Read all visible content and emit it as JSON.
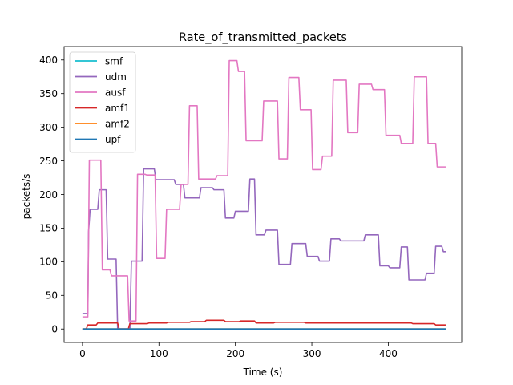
{
  "chart_data": {
    "type": "line",
    "title": "Rate_of_transmitted_packets",
    "xlabel": "Time (s)",
    "ylabel": "packets/s",
    "xlim": [
      -24,
      496
    ],
    "ylim": [
      -20,
      420
    ],
    "xticks": [
      0,
      100,
      200,
      300,
      400
    ],
    "yticks": [
      0,
      50,
      100,
      150,
      200,
      250,
      300,
      350,
      400
    ],
    "grid": false,
    "legend_position": "upper-left",
    "series": [
      {
        "name": "smf",
        "color": "#17becf",
        "x": [
          0,
          475
        ],
        "y": [
          0,
          0
        ]
      },
      {
        "name": "udm",
        "color": "#9467bd",
        "x": [
          0,
          7,
          8,
          10,
          11,
          20,
          22,
          31,
          33,
          44,
          46,
          62,
          64,
          78,
          80,
          94,
          96,
          120,
          122,
          132,
          134,
          153,
          155,
          170,
          172,
          185,
          187,
          198,
          200,
          217,
          219,
          225,
          227,
          238,
          240,
          255,
          257,
          272,
          274,
          292,
          294,
          308,
          310,
          323,
          325,
          336,
          338,
          368,
          370,
          387,
          389,
          400,
          402,
          415,
          417,
          425,
          427,
          448,
          450,
          460,
          462,
          470,
          472,
          475
        ],
        "y": [
          23,
          23,
          145,
          178,
          178,
          178,
          207,
          207,
          104,
          104,
          0,
          0,
          101,
          101,
          238,
          238,
          222,
          222,
          215,
          215,
          195,
          195,
          210,
          210,
          207,
          207,
          165,
          165,
          175,
          175,
          223,
          223,
          140,
          140,
          147,
          147,
          96,
          96,
          127,
          127,
          108,
          108,
          101,
          101,
          134,
          134,
          131,
          131,
          140,
          140,
          94,
          94,
          91,
          91,
          122,
          122,
          73,
          73,
          83,
          83,
          123,
          123,
          115,
          115
        ]
      },
      {
        "name": "ausf",
        "color": "#e377c2",
        "x": [
          0,
          7,
          9,
          24,
          26,
          36,
          38,
          46,
          48,
          59,
          61,
          70,
          72,
          82,
          84,
          95,
          97,
          108,
          110,
          127,
          129,
          138,
          140,
          150,
          152,
          174,
          176,
          190,
          192,
          202,
          204,
          212,
          214,
          235,
          237,
          255,
          257,
          268,
          270,
          283,
          285,
          299,
          301,
          312,
          314,
          326,
          328,
          345,
          347,
          360,
          362,
          378,
          380,
          395,
          397,
          415,
          417,
          432,
          434,
          450,
          452,
          462,
          464,
          475
        ],
        "y": [
          18,
          18,
          251,
          251,
          88,
          88,
          79,
          79,
          79,
          79,
          12,
          12,
          230,
          230,
          229,
          229,
          105,
          105,
          178,
          178,
          215,
          215,
          332,
          332,
          223,
          223,
          228,
          228,
          399,
          399,
          383,
          383,
          280,
          280,
          339,
          339,
          253,
          253,
          374,
          374,
          326,
          326,
          237,
          237,
          257,
          257,
          370,
          370,
          292,
          292,
          364,
          364,
          356,
          356,
          288,
          288,
          276,
          276,
          375,
          375,
          276,
          276,
          241,
          241
        ]
      },
      {
        "name": "amf1",
        "color": "#d62728",
        "x": [
          0,
          5,
          7,
          18,
          20,
          46,
          48,
          60,
          62,
          85,
          87,
          110,
          112,
          140,
          142,
          160,
          162,
          185,
          187,
          205,
          207,
          225,
          227,
          250,
          252,
          290,
          292,
          340,
          342,
          385,
          387,
          430,
          432,
          460,
          462,
          475
        ],
        "y": [
          0,
          0,
          6,
          6,
          9,
          9,
          0,
          0,
          8,
          8,
          9,
          9,
          10,
          10,
          11,
          11,
          13,
          13,
          11,
          11,
          12,
          12,
          9,
          9,
          10,
          10,
          9,
          9,
          9,
          9,
          9,
          9,
          8,
          8,
          6,
          6
        ]
      },
      {
        "name": "amf2",
        "color": "#ff7f0e",
        "x": [
          0,
          475
        ],
        "y": [
          0,
          0
        ]
      },
      {
        "name": "upf",
        "color": "#1f77b4",
        "x": [
          0,
          475
        ],
        "y": [
          0,
          0
        ]
      }
    ]
  }
}
